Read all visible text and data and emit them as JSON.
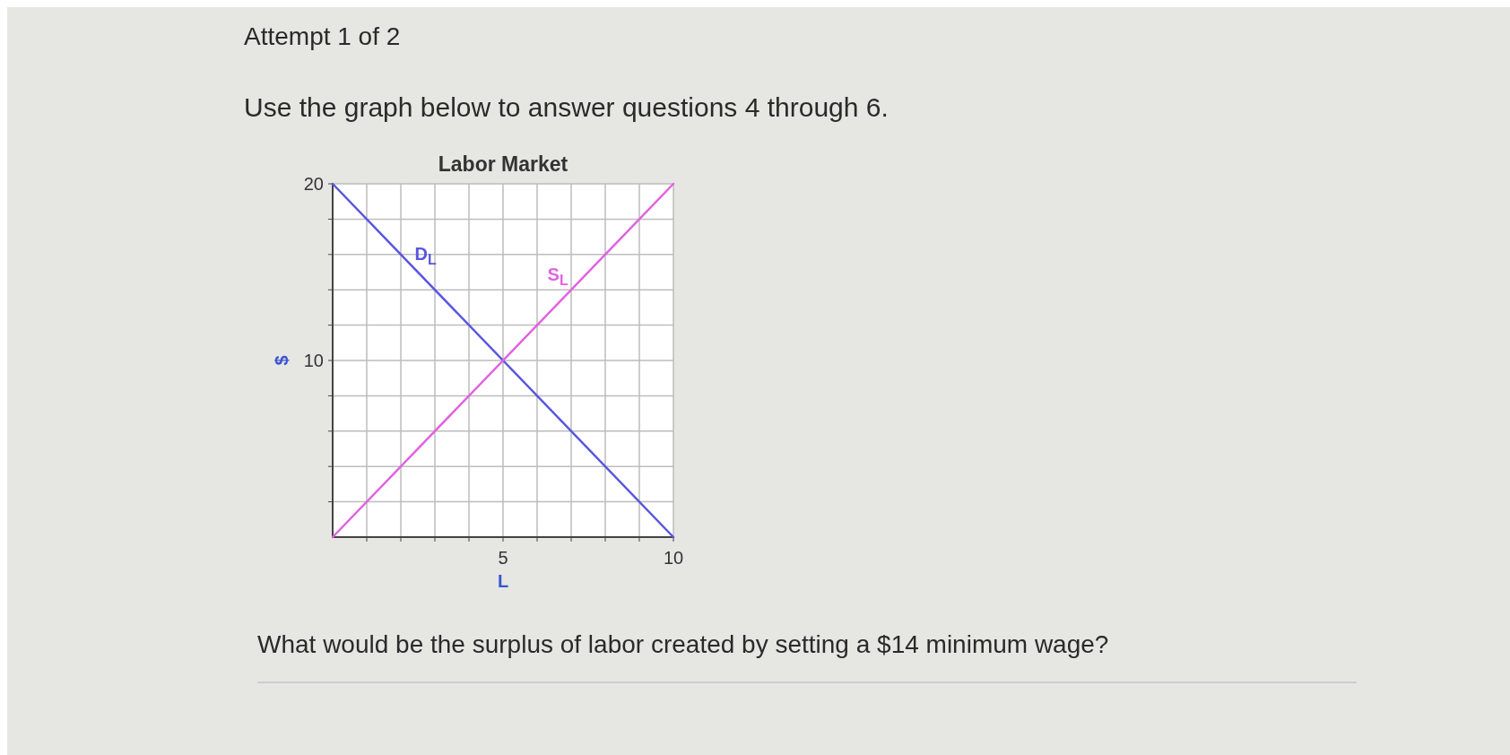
{
  "chart_data": {
    "type": "line",
    "title": "Labor Market",
    "xlabel": "L",
    "ylabel": "$",
    "annotations": [
      "Attempt 1 of 2",
      "Use the graph below to answer questions 4 through 6.",
      "What would be the surplus of labor created by setting a $14 minimum wage?"
    ],
    "series": [
      {
        "name": "D$_{L}$",
        "color": "#5a56e0",
        "values": [
          20,
          0
        ]
      },
      {
        "name": "S$_{L}$",
        "color": "#e062e0",
        "values": [
          0,
          20
        ]
      }
    ],
    "x": [
      0,
      10
    ],
    "xlim": [
      0,
      10
    ],
    "ylim": [
      0,
      20
    ],
    "xticks": [
      {
        "value": 1,
        "label": null
      },
      {
        "value": 2,
        "label": null
      },
      {
        "value": 3,
        "label": null
      },
      {
        "value": 4,
        "label": null
      },
      5,
      {
        "value": 6,
        "label": null
      },
      {
        "value": 7,
        "label": null
      },
      {
        "value": 8,
        "label": null
      },
      {
        "value": 9,
        "label": null
      },
      10
    ],
    "yticks": [
      {
        "value": 2,
        "label": null
      },
      {
        "value": 4,
        "label": null
      },
      {
        "value": 6,
        "label": null
      },
      {
        "value": 8,
        "label": null
      },
      10,
      {
        "value": 12,
        "label": null
      },
      {
        "value": 14,
        "label": null
      },
      {
        "value": 16,
        "label": null
      },
      {
        "value": 18,
        "label": null
      },
      20
    ],
    "grid": true,
    "marker": "none",
    "line_style": "solid"
  }
}
